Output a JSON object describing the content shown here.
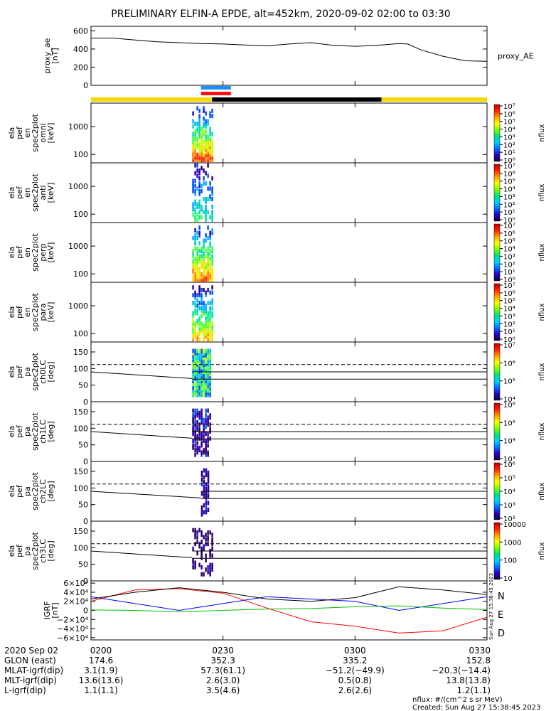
{
  "title": "PRELIMINARY ELFIN-A EPDE, alt=452km, 2020-09-02 02:00 to 03:30",
  "colors": {
    "ae_line": "#000000",
    "bar_yellow": "#f5d800",
    "bar_black": "#000000",
    "sci_blue": "#1e90ff",
    "sci_red": "#ff1010",
    "grf_n": "#0000ff",
    "grf_e": "#00c000",
    "grf_d": "#ff0000",
    "grf_total": "#000000"
  },
  "chart_data": [
    {
      "type": "line",
      "id": "proxy_ae",
      "ylabel_lines": [
        "proxy_ae",
        "[nT]"
      ],
      "series_label": "proxy_AE",
      "yticks": [
        "0",
        "200",
        "400",
        "600"
      ],
      "ylim": [
        0,
        650
      ],
      "xlim": [
        0,
        90
      ],
      "series": [
        {
          "name": "proxy_AE",
          "x": [
            0,
            5,
            10,
            15,
            20,
            25,
            30,
            35,
            40,
            45,
            50,
            55,
            60,
            65,
            70,
            72,
            75,
            80,
            85,
            90
          ],
          "y": [
            520,
            520,
            500,
            480,
            470,
            460,
            455,
            445,
            435,
            455,
            470,
            440,
            430,
            440,
            460,
            455,
            390,
            320,
            270,
            265
          ]
        }
      ]
    },
    {
      "type": "heatmap",
      "id": "en_omni",
      "ylabel_lines": [
        "ela",
        "pef",
        "en",
        "spec2plot",
        "omni",
        "[keV]"
      ],
      "yticks": [
        "100",
        "1000"
      ],
      "yscale": "log",
      "ylim": [
        50,
        7000
      ],
      "cbar_ticks": [
        "10⁰",
        "10¹",
        "10²",
        "10³",
        "10⁴",
        "10⁵",
        "10⁶",
        "10⁷"
      ],
      "cbar_label": "nflux",
      "x_range": [
        23,
        28
      ],
      "intensity": 0.9
    },
    {
      "type": "heatmap",
      "id": "en_anti",
      "ylabel_lines": [
        "ela",
        "pef",
        "en",
        "spec2plot",
        "anti",
        "[keV]"
      ],
      "yticks": [
        "100",
        "1000"
      ],
      "yscale": "log",
      "ylim": [
        50,
        7000
      ],
      "cbar_ticks": [
        "10⁰",
        "10¹",
        "10²",
        "10³",
        "10⁴",
        "10⁵",
        "10⁶",
        "10⁷"
      ],
      "cbar_label": "nflux",
      "x_range": [
        23,
        28
      ],
      "intensity": 0.45
    },
    {
      "type": "heatmap",
      "id": "en_perp",
      "ylabel_lines": [
        "ela",
        "pef",
        "en",
        "spec2plot",
        "perp",
        "[keV]"
      ],
      "yticks": [
        "100",
        "1000"
      ],
      "yscale": "log",
      "ylim": [
        50,
        7000
      ],
      "cbar_ticks": [
        "10⁰",
        "10¹",
        "10²",
        "10³",
        "10⁴",
        "10⁵",
        "10⁶",
        "10⁷"
      ],
      "cbar_label": "nflux",
      "x_range": [
        23,
        28
      ],
      "intensity": 0.85
    },
    {
      "type": "heatmap",
      "id": "en_para",
      "ylabel_lines": [
        "ela",
        "pef",
        "en",
        "spec2plot",
        "para",
        "[keV]"
      ],
      "yticks": [
        "100",
        "1000"
      ],
      "yscale": "log",
      "ylim": [
        50,
        7000
      ],
      "cbar_ticks": [
        "10⁰",
        "10¹",
        "10²",
        "10³",
        "10⁴",
        "10⁵",
        "10⁶",
        "10⁷"
      ],
      "cbar_label": "nflux",
      "x_range": [
        23,
        28
      ],
      "intensity": 0.75
    },
    {
      "type": "heatmap",
      "id": "pa_ch0",
      "ylabel_lines": [
        "ela",
        "pef",
        "pa",
        "spec2plot",
        "ch0LC",
        "[deg]"
      ],
      "yticks": [
        "0",
        "50",
        "100",
        "150"
      ],
      "yscale": "linear",
      "ylim": [
        0,
        180
      ],
      "cbar_ticks": [
        "10⁴",
        "10⁵",
        "10⁶",
        "10⁷"
      ],
      "cbar_label": "nflux",
      "x_range": [
        23,
        27.5
      ],
      "intensity": 0.8
    },
    {
      "type": "heatmap",
      "id": "pa_ch1",
      "ylabel_lines": [
        "ela",
        "pef",
        "pa",
        "spec2plot",
        "ch1LC",
        "[deg]"
      ],
      "yticks": [
        "0",
        "50",
        "100",
        "150"
      ],
      "yscale": "linear",
      "ylim": [
        0,
        180
      ],
      "cbar_ticks": [
        "10³",
        "10⁴",
        "10⁵",
        "10⁶"
      ],
      "cbar_label": "nflux",
      "x_range": [
        23,
        27.5
      ],
      "intensity": 0.4
    },
    {
      "type": "heatmap",
      "id": "pa_ch2",
      "ylabel_lines": [
        "ela",
        "pef",
        "pa",
        "spec2plot",
        "ch2LC",
        "[deg]"
      ],
      "yticks": [
        "0",
        "50",
        "100",
        "150"
      ],
      "yscale": "linear",
      "ylim": [
        0,
        180
      ],
      "cbar_ticks": [
        "10²",
        "10³",
        "10⁴",
        "10⁵",
        "10⁶"
      ],
      "cbar_label": "nflux",
      "x_range": [
        25,
        27
      ],
      "intensity": 0.35
    },
    {
      "type": "heatmap",
      "id": "pa_ch3",
      "ylabel_lines": [
        "ela",
        "pef",
        "pa",
        "spec2plot",
        "ch3LC",
        "[deg]"
      ],
      "yticks": [
        "0",
        "50",
        "100",
        "150"
      ],
      "yscale": "linear",
      "ylim": [
        0,
        180
      ],
      "cbar_ticks": [
        "10",
        "100",
        "1000",
        "10000"
      ],
      "cbar_label": "nflux",
      "x_range": [
        23,
        28
      ],
      "intensity": 0.2
    },
    {
      "type": "line",
      "id": "igrf",
      "ylabel_lines": [
        "IGRF",
        "[nT]"
      ],
      "yticks": [
        "−6×10⁴",
        "−4×10⁴",
        "−2×10⁴",
        "0",
        "2×10⁴",
        "4×10⁴",
        "6×10⁴"
      ],
      "ylim": [
        -65000,
        65000
      ],
      "xlim": [
        0,
        90
      ],
      "legend": [
        "N",
        "E",
        "D"
      ],
      "series": [
        {
          "name": "N",
          "color_key": "grf_n",
          "x": [
            0,
            10,
            20,
            30,
            40,
            50,
            60,
            70,
            80,
            90
          ],
          "y": [
            30000,
            15000,
            0,
            15000,
            30000,
            25000,
            20000,
            0,
            15000,
            30000
          ]
        },
        {
          "name": "E",
          "color_key": "grf_e",
          "x": [
            0,
            10,
            20,
            30,
            40,
            50,
            60,
            70,
            80,
            90
          ],
          "y": [
            1000,
            0,
            -3000,
            0,
            3000,
            4000,
            8000,
            10000,
            5000,
            2000
          ]
        },
        {
          "name": "D",
          "color_key": "grf_d",
          "x": [
            0,
            10,
            20,
            30,
            40,
            50,
            60,
            70,
            80,
            90
          ],
          "y": [
            20000,
            45000,
            48000,
            38000,
            5000,
            -25000,
            -35000,
            -50000,
            -45000,
            -15000
          ]
        },
        {
          "name": "",
          "color_key": "grf_total",
          "x": [
            0,
            10,
            20,
            30,
            40,
            50,
            60,
            70,
            80,
            90
          ],
          "y": [
            25000,
            40000,
            50000,
            40000,
            25000,
            20000,
            28000,
            52000,
            45000,
            35000
          ]
        }
      ]
    }
  ],
  "time_axis": {
    "row_labels": [
      "2020 Sep 02",
      "GLON (east)",
      "MLAT-igrf(dip)",
      "MLT-igrf(dip)",
      "L-igrf(dip)"
    ],
    "columns": [
      {
        "x": 0,
        "values": [
          "0200",
          "174.6",
          "3.1(1.9)",
          "13.6(13.6)",
          "1.1(1.1)"
        ]
      },
      {
        "x": 30,
        "values": [
          "0230",
          "352.3",
          "57.3(61.1)",
          "2.6(3.0)",
          "3.5(4.6)"
        ]
      },
      {
        "x": 60,
        "values": [
          "0300",
          "335.2",
          "−51.2(−49.9)",
          "0.5(0.8)",
          "2.6(2.6)"
        ]
      },
      {
        "x": 90,
        "values": [
          "0330",
          "152.8",
          "−20.3(−14.4)",
          "13.8(13.8)",
          "1.2(1.1)"
        ]
      }
    ]
  },
  "footer": {
    "units": "nflux: #/(cm^2 s sr MeV)",
    "created": "Created: Sun Aug 27 15:38:45 2023",
    "side_stamp": "Sun Aug 27 15:38:45 2023"
  }
}
